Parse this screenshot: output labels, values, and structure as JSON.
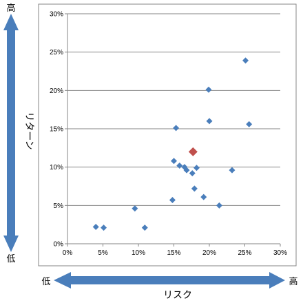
{
  "chart_data": {
    "type": "scatter",
    "xlabel": "リスク",
    "ylabel": "リターン",
    "xlim": [
      0,
      30
    ],
    "ylim": [
      0,
      30
    ],
    "x_ticks": [
      "0%",
      "5%",
      "10%",
      "15%",
      "20%",
      "25%",
      "30%"
    ],
    "y_ticks": [
      "0%",
      "5%",
      "10%",
      "15%",
      "20%",
      "25%",
      "30%"
    ],
    "grid": "horizontal",
    "legend": "none",
    "x_axis_low_label": "低",
    "x_axis_high_label": "高",
    "y_axis_low_label": "低",
    "y_axis_high_label": "高",
    "series": [
      {
        "color": "#4a7ebb",
        "marker": "diamond",
        "points": [
          {
            "x": 4.0,
            "y": 2.2
          },
          {
            "x": 5.1,
            "y": 2.1
          },
          {
            "x": 9.5,
            "y": 4.6
          },
          {
            "x": 10.9,
            "y": 2.1
          },
          {
            "x": 14.8,
            "y": 5.7
          },
          {
            "x": 15.0,
            "y": 10.8
          },
          {
            "x": 15.3,
            "y": 15.1
          },
          {
            "x": 15.8,
            "y": 10.2
          },
          {
            "x": 16.5,
            "y": 10.0
          },
          {
            "x": 16.8,
            "y": 9.6
          },
          {
            "x": 17.6,
            "y": 9.2
          },
          {
            "x": 17.9,
            "y": 7.2
          },
          {
            "x": 18.2,
            "y": 9.9
          },
          {
            "x": 19.2,
            "y": 6.1
          },
          {
            "x": 19.9,
            "y": 20.1
          },
          {
            "x": 20.0,
            "y": 16.0
          },
          {
            "x": 21.4,
            "y": 5.0
          },
          {
            "x": 23.2,
            "y": 9.6
          },
          {
            "x": 25.1,
            "y": 23.9
          },
          {
            "x": 25.6,
            "y": 15.6
          }
        ]
      },
      {
        "color": "#c0504d",
        "marker": "diamond",
        "points": [
          {
            "x": 17.7,
            "y": 12.0
          }
        ]
      }
    ]
  }
}
